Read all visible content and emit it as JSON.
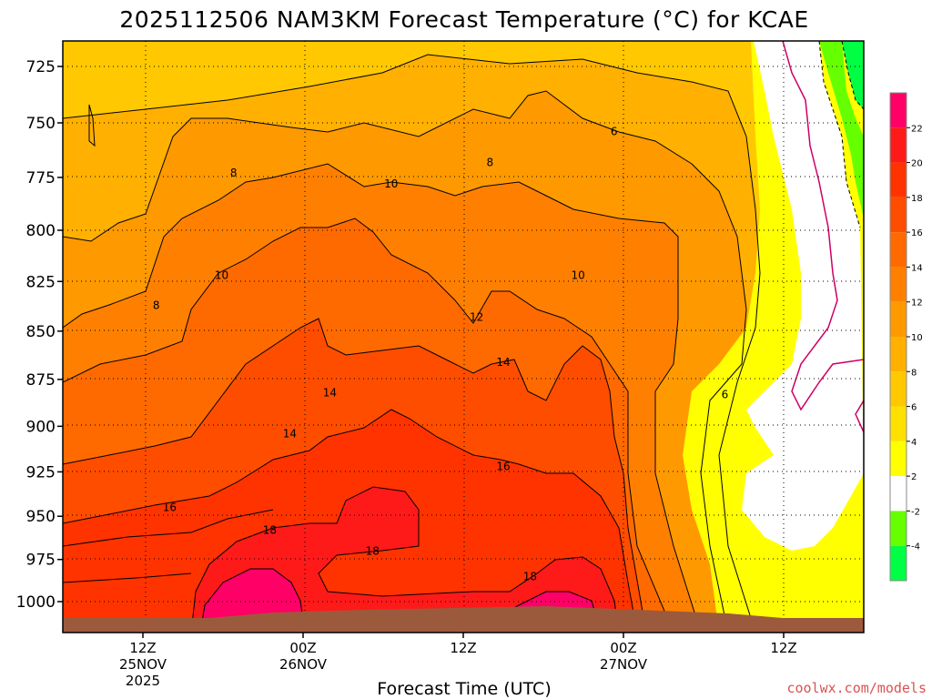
{
  "chart_data": {
    "type": "heatmap",
    "title": "2025112506 NAM3KM Forecast Temperature (°C) for KCAE",
    "xlabel": "Forecast Time (UTC)",
    "ylabel": "",
    "y_ticks": [
      725,
      750,
      775,
      800,
      825,
      850,
      875,
      900,
      925,
      950,
      975,
      1000
    ],
    "x_ticks": [
      {
        "hour_from_init": 6,
        "line1": "12Z",
        "line2": "25NOV",
        "line3": "2025"
      },
      {
        "hour_from_init": 18,
        "line1": "00Z",
        "line2": "26NOV",
        "line3": ""
      },
      {
        "hour_from_init": 30,
        "line1": "12Z",
        "line2": "",
        "line3": ""
      },
      {
        "hour_from_init": 42,
        "line1": "00Z",
        "line2": "27NOV",
        "line3": ""
      },
      {
        "hour_from_init": 54,
        "line1": "12Z",
        "line2": "",
        "line3": ""
      }
    ],
    "x_range_hours": [
      0,
      60
    ],
    "y_range_hpa": [
      710,
      1015
    ],
    "grid": true,
    "colorbar": {
      "ticks": [
        22,
        20,
        18,
        16,
        14,
        12,
        10,
        8,
        6,
        4,
        2,
        -2,
        -4
      ],
      "colors": [
        "#ff0066",
        "#ff1a1a",
        "#ff3300",
        "#ff4d00",
        "#ff6a00",
        "#ff8000",
        "#ff9900",
        "#ffb000",
        "#ffc800",
        "#ffe000",
        "#ffff00",
        "#ffffff",
        "#66ff00",
        "#00ff44"
      ]
    },
    "contour_labels": [
      {
        "text": "6",
        "hour": 41.3,
        "hpa": 754
      },
      {
        "text": "8",
        "hour": 12.8,
        "hpa": 773
      },
      {
        "text": "8",
        "hour": 32.0,
        "hpa": 768
      },
      {
        "text": "10",
        "hour": 24.6,
        "hpa": 778
      },
      {
        "text": "10",
        "hour": 11.9,
        "hpa": 822
      },
      {
        "text": "8",
        "hour": 7.0,
        "hpa": 837
      },
      {
        "text": "10",
        "hour": 38.6,
        "hpa": 822
      },
      {
        "text": "12",
        "hour": 31.0,
        "hpa": 843
      },
      {
        "text": "14",
        "hour": 33.0,
        "hpa": 866
      },
      {
        "text": "14",
        "hour": 20.0,
        "hpa": 882
      },
      {
        "text": "14",
        "hour": 17.0,
        "hpa": 904
      },
      {
        "text": "6",
        "hour": 49.6,
        "hpa": 883
      },
      {
        "text": "16",
        "hour": 33.0,
        "hpa": 922
      },
      {
        "text": "16",
        "hour": 8.0,
        "hpa": 945
      },
      {
        "text": "18",
        "hour": 15.5,
        "hpa": 958
      },
      {
        "text": "18",
        "hour": 23.2,
        "hpa": 970
      },
      {
        "text": "18",
        "hour": 35.0,
        "hpa": 985
      }
    ]
  },
  "credit": "coolwx.com/models"
}
